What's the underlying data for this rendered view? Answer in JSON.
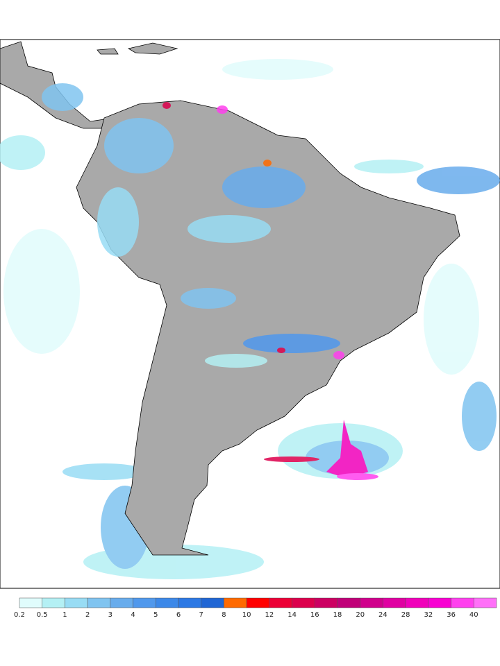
{
  "legend": {
    "labels": [
      0.2,
      0.5,
      1,
      2,
      3,
      4,
      5,
      6,
      7,
      8,
      10,
      12,
      14,
      16,
      18,
      20,
      24,
      28,
      32,
      36,
      40
    ],
    "colors": [
      "#e0fcfc",
      "#b4f0f4",
      "#98dcf4",
      "#80c4f0",
      "#68acec",
      "#5098ec",
      "#3c88e8",
      "#2c78e4",
      "#2066d4",
      "#ff6a00",
      "#ff0000",
      "#ec0036",
      "#dc004c",
      "#cc0062",
      "#c00078",
      "#d0008c",
      "#e000a2",
      "#f000ba",
      "#f800d2",
      "#ff40ee",
      "#ff70f8"
    ]
  }
}
